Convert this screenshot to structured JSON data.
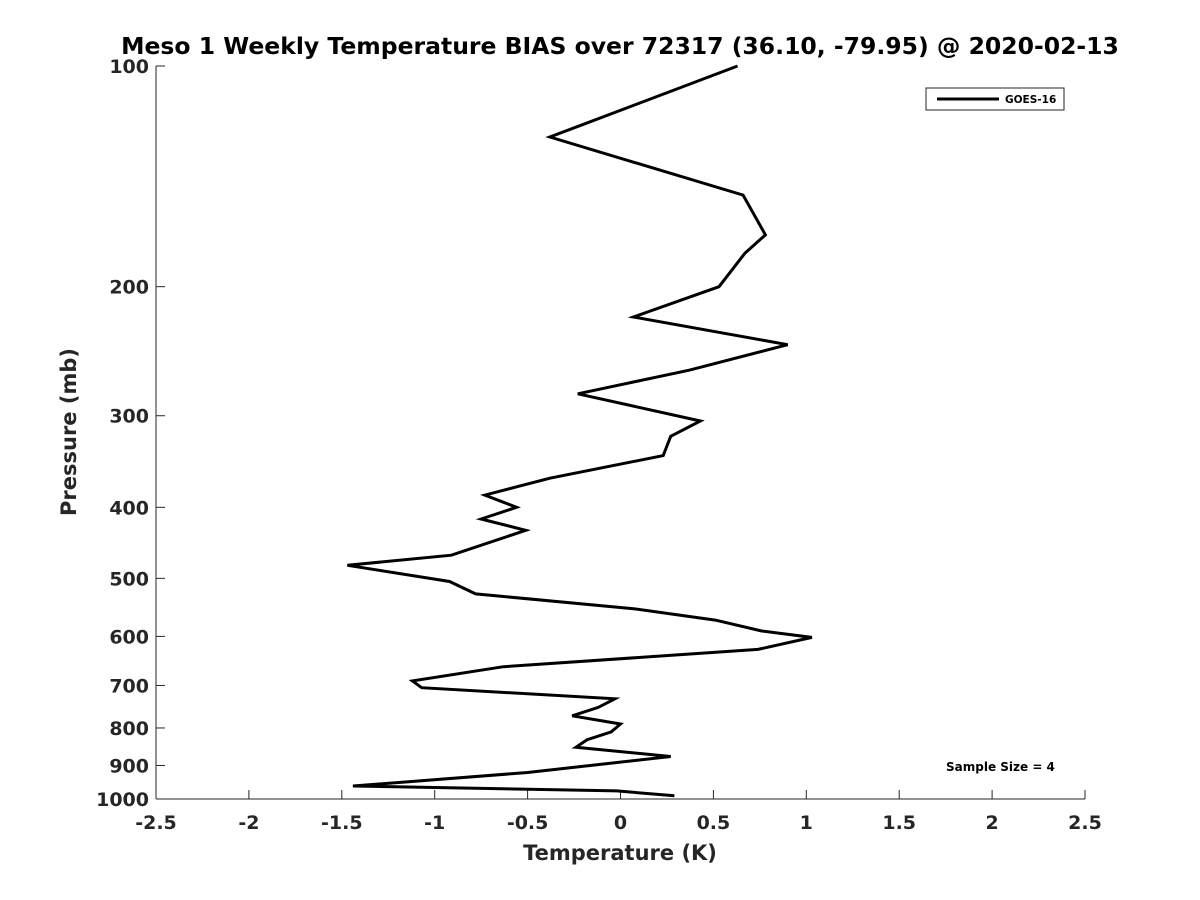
{
  "chart_data": {
    "type": "line",
    "title": "Meso 1 Weekly Temperature BIAS over 72317 (36.10, -79.95) @ 2020-02-13",
    "xlabel": "Temperature (K)",
    "ylabel": "Pressure (mb)",
    "xlim": [
      -2.5,
      2.5
    ],
    "ylim": [
      100,
      1000
    ],
    "y_scale": "log",
    "y_reversed": true,
    "grid": false,
    "legend_position": "top-right",
    "x_ticks": [
      -2.5,
      -2,
      -1.5,
      -1,
      -0.5,
      0,
      0.5,
      1,
      1.5,
      2,
      2.5
    ],
    "x_tick_labels": [
      "-2.5",
      "-2",
      "-1.5",
      "-1",
      "-0.5",
      "0",
      "0.5",
      "1",
      "1.5",
      "2",
      "2.5"
    ],
    "y_ticks": [
      100,
      200,
      300,
      400,
      500,
      600,
      700,
      800,
      900,
      1000
    ],
    "y_tick_labels": [
      "100",
      "200",
      "300",
      "400",
      "500",
      "600",
      "700",
      "800",
      "900",
      "1000"
    ],
    "series": [
      {
        "name": "GOES-16",
        "color": "#000000",
        "points": [
          [
            0.63,
            100
          ],
          [
            -0.38,
            125
          ],
          [
            0.66,
            150
          ],
          [
            0.78,
            170
          ],
          [
            0.67,
            180
          ],
          [
            0.53,
            200
          ],
          [
            0.07,
            220
          ],
          [
            0.9,
            240
          ],
          [
            0.37,
            260
          ],
          [
            -0.23,
            280
          ],
          [
            0.43,
            305
          ],
          [
            0.27,
            320
          ],
          [
            0.23,
            340
          ],
          [
            -0.38,
            365
          ],
          [
            -0.73,
            385
          ],
          [
            -0.56,
            400
          ],
          [
            -0.75,
            415
          ],
          [
            -0.51,
            430
          ],
          [
            -0.91,
            465
          ],
          [
            -1.47,
            480
          ],
          [
            -0.92,
            505
          ],
          [
            -0.78,
            525
          ],
          [
            0.07,
            550
          ],
          [
            0.51,
            570
          ],
          [
            0.76,
            590
          ],
          [
            1.03,
            602
          ],
          [
            0.74,
            625
          ],
          [
            -0.63,
            660
          ],
          [
            -1.12,
            690
          ],
          [
            -1.07,
            705
          ],
          [
            -0.03,
            730
          ],
          [
            -0.12,
            750
          ],
          [
            -0.26,
            770
          ],
          [
            0.0,
            790
          ],
          [
            -0.05,
            810
          ],
          [
            -0.18,
            830
          ],
          [
            -0.24,
            850
          ],
          [
            0.27,
            875
          ],
          [
            -0.5,
            920
          ],
          [
            -1.44,
            960
          ],
          [
            -0.02,
            975
          ],
          [
            0.29,
            990
          ]
        ]
      }
    ],
    "annotations": [
      "Sample Size = 4"
    ]
  }
}
